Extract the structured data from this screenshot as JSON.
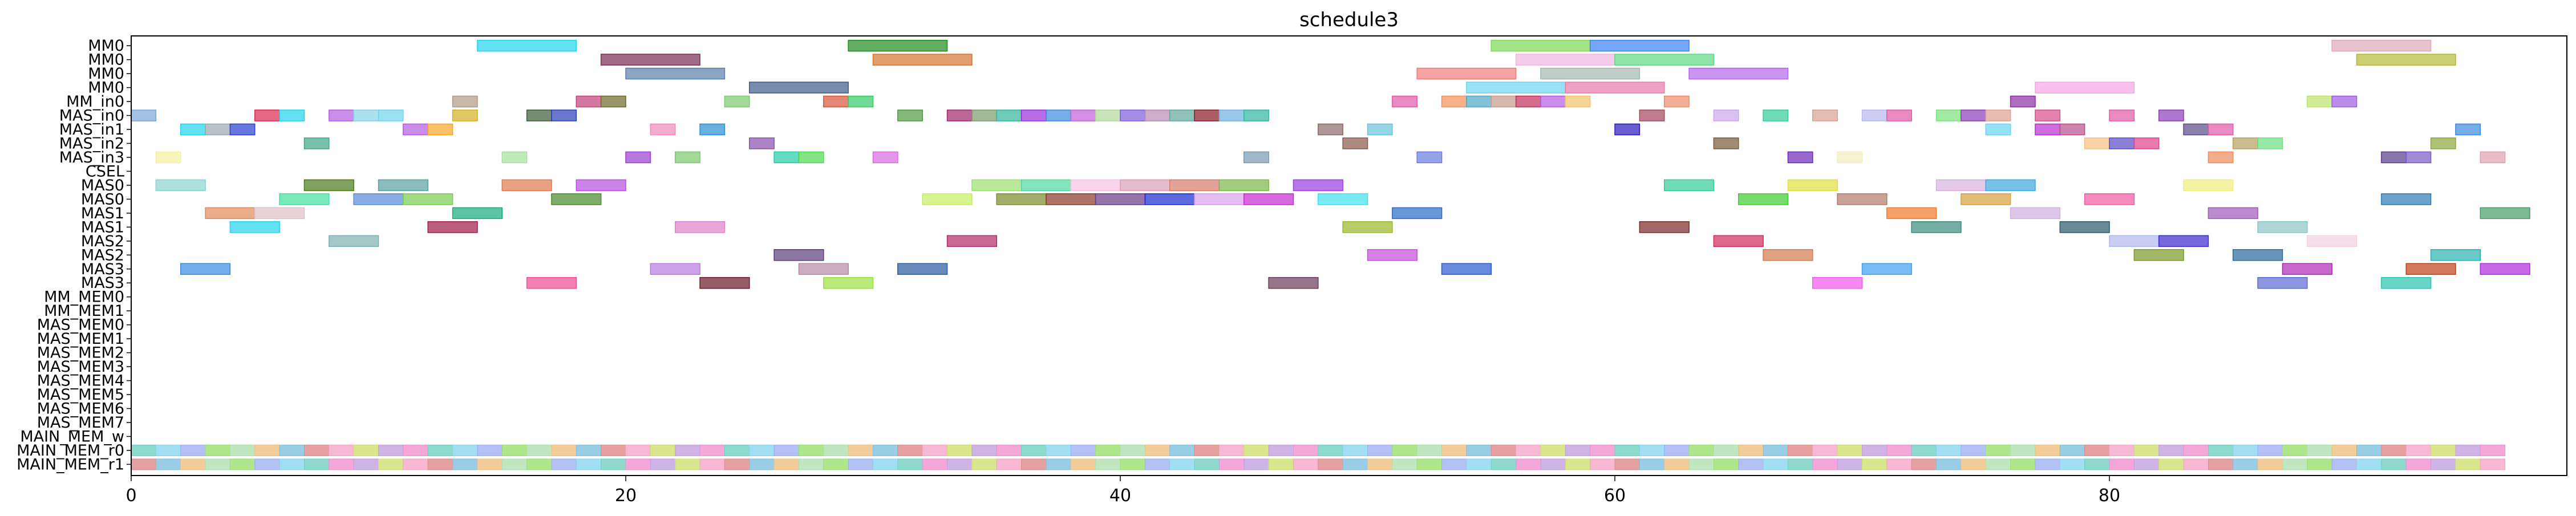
{
  "chart_data": {
    "type": "gantt",
    "title": "schedule3",
    "xlabel": "",
    "ylabel": "",
    "xlim": [
      0,
      98.5
    ],
    "xticks": [
      0,
      20,
      40,
      60,
      80
    ],
    "grid": false,
    "rows": [
      "MM0",
      "MM0",
      "MM0",
      "MM0",
      "MM_in0",
      "MAS_in0",
      "MAS_in1",
      "MAS_in2",
      "MAS_in3",
      "CSEL",
      "MAS0",
      "MAS0",
      "MAS1",
      "MAS1",
      "MAS2",
      "MAS2",
      "MAS3",
      "MAS3",
      "MM_MEM0",
      "MM_MEM1",
      "MAS_MEM0",
      "MAS_MEM1",
      "MAS_MEM2",
      "MAS_MEM3",
      "MAS_MEM4",
      "MAS_MEM5",
      "MAS_MEM6",
      "MAS_MEM7",
      "MAIN_MEM_w",
      "MAIN_MEM_r0",
      "MAIN_MEM_r1"
    ],
    "tasks": [
      [
        0,
        14,
        18,
        "#22d3ee"
      ],
      [
        0,
        29,
        33,
        "#1f8a1f"
      ],
      [
        0,
        55,
        59,
        "#7ed957"
      ],
      [
        0,
        59,
        63,
        "#3b82f6"
      ],
      [
        0,
        89,
        93,
        "#e0a6b8"
      ],
      [
        1,
        19,
        23,
        "#7a2e52"
      ],
      [
        1,
        30,
        34,
        "#d4742f"
      ],
      [
        1,
        56,
        60,
        "#f0b6e0"
      ],
      [
        1,
        60,
        64,
        "#5fd985"
      ],
      [
        1,
        90,
        94,
        "#b3b834"
      ],
      [
        2,
        20,
        24,
        "#5a7fa8"
      ],
      [
        2,
        52,
        56,
        "#ef7b7b"
      ],
      [
        2,
        57,
        61,
        "#a3b8b0"
      ],
      [
        2,
        63,
        67,
        "#b266ec"
      ],
      [
        3,
        25,
        29,
        "#3d5a8a"
      ],
      [
        3,
        54,
        58,
        "#6fd4f0"
      ],
      [
        3,
        58,
        62,
        "#e879a8"
      ],
      [
        3,
        77,
        81,
        "#f5a6e6"
      ],
      [
        4,
        13,
        14,
        "#b09a85"
      ],
      [
        4,
        18,
        19,
        "#c2417a"
      ],
      [
        4,
        19,
        20,
        "#6b6b2a"
      ],
      [
        4,
        24,
        25,
        "#7bc96e"
      ],
      [
        4,
        28,
        29,
        "#d9533a"
      ],
      [
        4,
        29,
        30,
        "#33cc66"
      ],
      [
        4,
        51,
        52,
        "#e05aa8"
      ],
      [
        4,
        53,
        54,
        "#f58f5a"
      ],
      [
        4,
        54,
        55,
        "#4fa8c4"
      ],
      [
        4,
        55,
        56,
        "#c79a8a"
      ],
      [
        4,
        56,
        57,
        "#c22f5a"
      ],
      [
        4,
        57,
        58,
        "#b35ce0"
      ],
      [
        4,
        58,
        59,
        "#f0c36a"
      ],
      [
        4,
        62,
        63,
        "#f08a6a"
      ],
      [
        4,
        76,
        77,
        "#8a2fa3"
      ],
      [
        4,
        88,
        89,
        "#bde36a"
      ],
      [
        4,
        89,
        90,
        "#9b5ce0"
      ],
      [
        5,
        0,
        1,
        "#7aa6d9"
      ],
      [
        5,
        5,
        6,
        "#d9264f"
      ],
      [
        5,
        6,
        7,
        "#22d3ee"
      ],
      [
        5,
        8,
        9,
        "#b35ce0"
      ],
      [
        5,
        9,
        10,
        "#88d4e8"
      ],
      [
        5,
        10,
        11,
        "#6fd4f0"
      ],
      [
        5,
        13,
        14,
        "#d4b020"
      ],
      [
        5,
        16,
        17,
        "#3d5a3a"
      ],
      [
        5,
        17,
        18,
        "#2a3fb8"
      ],
      [
        5,
        31,
        32,
        "#4f9a3f"
      ],
      [
        5,
        33,
        34,
        "#a0276a"
      ],
      [
        5,
        34,
        35,
        "#7a9a6a"
      ],
      [
        5,
        35,
        36,
        "#2fb59a"
      ],
      [
        5,
        36,
        37,
        "#9b2fe0"
      ],
      [
        5,
        37,
        38,
        "#3b8ae0"
      ],
      [
        5,
        38,
        39,
        "#c25fd9"
      ],
      [
        5,
        39,
        40,
        "#b0d99a"
      ],
      [
        5,
        40,
        41,
        "#7a5ce0"
      ],
      [
        5,
        41,
        42,
        "#b88ab0"
      ],
      [
        5,
        42,
        43,
        "#5fa89a"
      ],
      [
        5,
        43,
        44,
        "#8a1a2a"
      ],
      [
        5,
        44,
        45,
        "#70b0e0"
      ],
      [
        5,
        45,
        46,
        "#2fb5a0"
      ],
      [
        5,
        61,
        62,
        "#a3475f"
      ],
      [
        5,
        64,
        65,
        "#c9a6f0"
      ],
      [
        5,
        66,
        67,
        "#33cc99"
      ],
      [
        5,
        68,
        69,
        "#d9a090"
      ],
      [
        5,
        70,
        71,
        "#b8b8f0"
      ],
      [
        5,
        71,
        72,
        "#e05aa8"
      ],
      [
        5,
        73,
        74,
        "#7ae07a"
      ],
      [
        5,
        74,
        75,
        "#8a3fb8"
      ],
      [
        5,
        75,
        76,
        "#e0a090"
      ],
      [
        5,
        77,
        78,
        "#d94f8a"
      ],
      [
        5,
        80,
        81,
        "#e05aa8"
      ],
      [
        5,
        82,
        83,
        "#8a3fb8"
      ],
      [
        6,
        2,
        3,
        "#22d3ee"
      ],
      [
        6,
        3,
        4,
        "#9aa8b0"
      ],
      [
        6,
        4,
        5,
        "#2a3fd0"
      ],
      [
        6,
        11,
        12,
        "#b35ce0"
      ],
      [
        6,
        12,
        13,
        "#f5a623"
      ],
      [
        6,
        21,
        22,
        "#f08ab8"
      ],
      [
        6,
        23,
        24,
        "#2a8fd0"
      ],
      [
        6,
        48,
        49,
        "#8a6a6a"
      ],
      [
        6,
        50,
        51,
        "#6ac4d9"
      ],
      [
        6,
        60,
        61,
        "#2a1ab8"
      ],
      [
        6,
        75,
        76,
        "#6ad4f0"
      ],
      [
        6,
        77,
        78,
        "#b82fd0"
      ],
      [
        6,
        78,
        79,
        "#b84f8a"
      ],
      [
        6,
        83,
        84,
        "#5a4a8a"
      ],
      [
        6,
        84,
        85,
        "#e05aa8"
      ],
      [
        6,
        94,
        95,
        "#3b8ae0"
      ],
      [
        7,
        7,
        8,
        "#3fa888"
      ],
      [
        7,
        25,
        26,
        "#8a4fb0"
      ],
      [
        7,
        49,
        50,
        "#8a5a4a"
      ],
      [
        7,
        64,
        65,
        "#7a5a3a"
      ],
      [
        7,
        85,
        86,
        "#b8a060"
      ],
      [
        7,
        86,
        87,
        "#6ae080"
      ],
      [
        7,
        93,
        94,
        "#8aa83a"
      ],
      [
        7,
        79,
        80,
        "#f5c080"
      ],
      [
        7,
        80,
        81,
        "#5a4ac4"
      ],
      [
        7,
        81,
        82,
        "#e0408a"
      ],
      [
        8,
        1,
        2,
        "#f5f0a0"
      ],
      [
        8,
        15,
        16,
        "#a8e0a0"
      ],
      [
        8,
        20,
        21,
        "#9b3fd0"
      ],
      [
        8,
        22,
        23,
        "#7ac96e"
      ],
      [
        8,
        26,
        27,
        "#22ccaa"
      ],
      [
        8,
        27,
        28,
        "#4fd94f"
      ],
      [
        8,
        30,
        31,
        "#d96ae0"
      ],
      [
        8,
        45,
        46,
        "#7a9ab0"
      ],
      [
        8,
        52,
        53,
        "#6a7ae0"
      ],
      [
        8,
        67,
        68,
        "#6a2ab8"
      ],
      [
        8,
        69,
        70,
        "#f0f0c0"
      ],
      [
        8,
        84,
        85,
        "#f08a5a"
      ],
      [
        8,
        91,
        92,
        "#5a3a8a"
      ],
      [
        8,
        92,
        93,
        "#7a5ac4"
      ],
      [
        8,
        95,
        96,
        "#e0a0b0"
      ],
      [
        10,
        1,
        3,
        "#8ad4d0"
      ],
      [
        10,
        7,
        9,
        "#4a7a1a"
      ],
      [
        10,
        10,
        12,
        "#5aa0a0"
      ],
      [
        10,
        15,
        17,
        "#e07a4a"
      ],
      [
        10,
        18,
        20,
        "#b84fe0"
      ],
      [
        10,
        34,
        36,
        "#9ae070"
      ],
      [
        10,
        36,
        38,
        "#4fd9a0"
      ],
      [
        10,
        38,
        40,
        "#f5c0e0"
      ],
      [
        10,
        40,
        42,
        "#d9a0b8"
      ],
      [
        10,
        42,
        44,
        "#d97a6a"
      ],
      [
        10,
        44,
        46,
        "#7ab84a"
      ],
      [
        10,
        47,
        49,
        "#9b3fe0"
      ],
      [
        10,
        62,
        64,
        "#33cc99"
      ],
      [
        10,
        67,
        69,
        "#e0e040"
      ],
      [
        10,
        73,
        75,
        "#d9b0e0"
      ],
      [
        10,
        75,
        77,
        "#3ba8e0"
      ],
      [
        10,
        83,
        85,
        "#f0f080"
      ],
      [
        11,
        6,
        8,
        "#40e0a0"
      ],
      [
        11,
        9,
        11,
        "#5a8ad9"
      ],
      [
        11,
        11,
        13,
        "#7acc50"
      ],
      [
        11,
        17,
        19,
        "#4a8a2a"
      ],
      [
        11,
        32,
        34,
        "#c4f060"
      ],
      [
        11,
        35,
        37,
        "#7a8a2a"
      ],
      [
        11,
        37,
        39,
        "#8a3a2a"
      ],
      [
        11,
        39,
        41,
        "#6a3a8a"
      ],
      [
        11,
        41,
        43,
        "#1a2ad0"
      ],
      [
        11,
        43,
        45,
        "#d9a0e8"
      ],
      [
        11,
        45,
        47,
        "#c42ad0"
      ],
      [
        11,
        48,
        50,
        "#40e0f0"
      ],
      [
        11,
        65,
        67,
        "#40cc30"
      ],
      [
        11,
        69,
        71,
        "#b07a6a"
      ],
      [
        11,
        74,
        76,
        "#d9a040"
      ],
      [
        11,
        79,
        81,
        "#f05aa0"
      ],
      [
        11,
        91,
        93,
        "#2a7ab8"
      ],
      [
        12,
        3,
        5,
        "#e08a5a"
      ],
      [
        12,
        5,
        7,
        "#e0c0c8"
      ],
      [
        12,
        13,
        15,
        "#1aaa7a"
      ],
      [
        12,
        51,
        53,
        "#2a6ac4"
      ],
      [
        12,
        71,
        73,
        "#f07a2a"
      ],
      [
        12,
        76,
        78,
        "#d0b0e0"
      ],
      [
        12,
        84,
        86,
        "#a05ab8"
      ],
      [
        12,
        95,
        97,
        "#4a9a6a"
      ],
      [
        13,
        4,
        6,
        "#22d3ee"
      ],
      [
        13,
        12,
        14,
        "#a01a4a"
      ],
      [
        13,
        22,
        24,
        "#e080c8"
      ],
      [
        13,
        49,
        51,
        "#9ab82a"
      ],
      [
        13,
        61,
        63,
        "#7a2a2a"
      ],
      [
        13,
        72,
        74,
        "#3a8a7a"
      ],
      [
        13,
        78,
        80,
        "#2a5a6a"
      ],
      [
        13,
        86,
        88,
        "#8ac4c4"
      ],
      [
        14,
        8,
        10,
        "#7ab0b0"
      ],
      [
        14,
        33,
        35,
        "#b02a6a"
      ],
      [
        14,
        64,
        66,
        "#d02a5a"
      ],
      [
        14,
        80,
        82,
        "#b0b8f0"
      ],
      [
        14,
        82,
        84,
        "#3a2ad0"
      ],
      [
        14,
        88,
        90,
        "#f5d0e0"
      ],
      [
        15,
        26,
        28,
        "#5a3a7a"
      ],
      [
        15,
        50,
        52,
        "#c44fd9"
      ],
      [
        15,
        66,
        68,
        "#d07a4a"
      ],
      [
        15,
        81,
        83,
        "#7a9a2a"
      ],
      [
        15,
        85,
        87,
        "#2a6a9a"
      ],
      [
        15,
        93,
        95,
        "#2ab0b0"
      ],
      [
        16,
        2,
        4,
        "#3b8ae0"
      ],
      [
        16,
        21,
        23,
        "#b87ae0"
      ],
      [
        16,
        27,
        29,
        "#b88aa8"
      ],
      [
        16,
        31,
        33,
        "#2a5aa0"
      ],
      [
        16,
        53,
        55,
        "#2a5ad0"
      ],
      [
        16,
        70,
        72,
        "#40a0f0"
      ],
      [
        16,
        87,
        89,
        "#b02ab8"
      ],
      [
        16,
        92,
        94,
        "#c0401a"
      ],
      [
        16,
        95,
        97,
        "#b02ae0"
      ],
      [
        17,
        16,
        18,
        "#f04a90"
      ],
      [
        17,
        23,
        25,
        "#6a1a2a"
      ],
      [
        17,
        28,
        30,
        "#9ae040"
      ],
      [
        17,
        46,
        48,
        "#6a3a5a"
      ],
      [
        17,
        68,
        70,
        "#f05af0"
      ],
      [
        17,
        86,
        88,
        "#5a6ad0"
      ],
      [
        17,
        91,
        93,
        "#2ac4b0"
      ]
    ]
  }
}
